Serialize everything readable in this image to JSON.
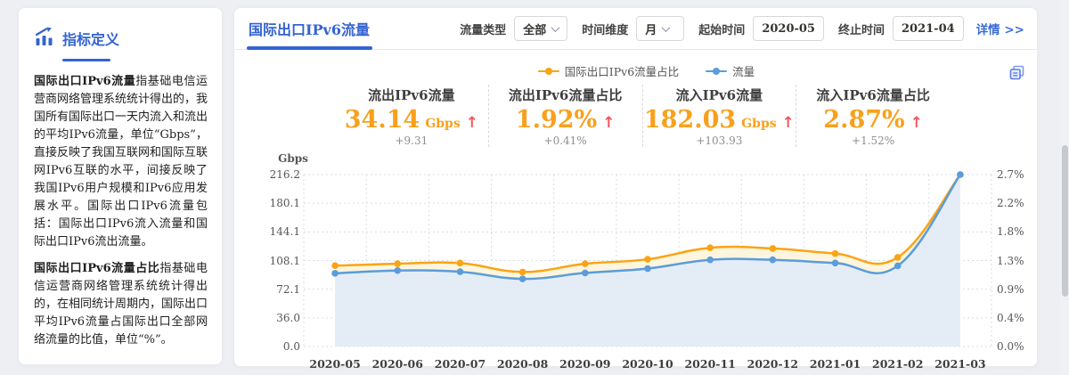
{
  "sidebar": {
    "title": "指标定义",
    "paragraphs": [
      {
        "lead": "国际出口IPv6流量",
        "body": "指基础电信运营商网络管理系统统计得出的，我国所有国际出口一天内流入和流出的平均IPv6流量，单位“Gbps”，直接反映了我国互联网和国际互联网IPv6互联的水平，间接反映了我国IPv6用户规模和IPv6应用发展水平。国际出口IPv6流量包括：国际出口IPv6流入流量和国际出口IPv6流出流量。"
      },
      {
        "lead": "国际出口IPv6流量占比",
        "body": "指基础电信运营商网络管理系统统计得出的，在相同统计周期内，国际出口平均IPv6流量占国际出口全部网络流量的比值，单位“%”。"
      }
    ]
  },
  "panel": {
    "title": "国际出口IPv6流量",
    "filters": {
      "traffic_type_label": "流量类型",
      "traffic_type_value": "全部",
      "time_dim_label": "时间维度",
      "time_dim_value": "月",
      "start_label": "起始时间",
      "start_value": "2020-05",
      "end_label": "终止时间",
      "end_value": "2021-04",
      "details_link": "详情 >>"
    },
    "legend": [
      {
        "label": "国际出口IPv6流量占比",
        "color": "#FAA414"
      },
      {
        "label": "流量",
        "color": "#5B9CDB"
      }
    ],
    "cards": [
      {
        "title": "流出IPv6流量",
        "value": "34.14",
        "unit": "Gbps",
        "arrow": "↑",
        "change": "+9.31"
      },
      {
        "title": "流出IPv6流量占比",
        "value": "1.92%",
        "unit": "",
        "arrow": "↑",
        "change": "+0.41%"
      },
      {
        "title": "流入IPv6流量",
        "value": "182.03",
        "unit": "Gbps",
        "arrow": "↑",
        "change": "+103.93"
      },
      {
        "title": "流入IPv6流量占比",
        "value": "2.87%",
        "unit": "",
        "arrow": "↑",
        "change": "+1.52%"
      }
    ]
  },
  "chart_data": {
    "type": "line",
    "smooth": true,
    "categories": [
      "2020-05",
      "2020-06",
      "2020-07",
      "2020-08",
      "2020-09",
      "2020-10",
      "2020-11",
      "2020-12",
      "2021-01",
      "2021-02",
      "2021-03"
    ],
    "series": [
      {
        "name": "国际出口IPv6流量占比",
        "axis": "right",
        "unit": "%",
        "color": "#FAA414",
        "fill": "#FDF5DE",
        "values": [
          1.27,
          1.3,
          1.31,
          1.17,
          1.3,
          1.37,
          1.55,
          1.54,
          1.46,
          1.4,
          2.7
        ]
      },
      {
        "name": "流量",
        "axis": "left",
        "unit": "Gbps",
        "color": "#5B9CDB",
        "fill": "#E4EDF5",
        "values": [
          92.0,
          95.5,
          94.0,
          85.0,
          92.5,
          98.0,
          109.0,
          109.0,
          105.0,
          101.5,
          216.2
        ]
      }
    ],
    "left_axis": {
      "title": "Gbps",
      "min": 0,
      "max": 216.2,
      "ticks": [
        "0.0",
        "36.0",
        "72.1",
        "108.1",
        "144.1",
        "180.1",
        "216.2"
      ]
    },
    "right_axis": {
      "title": "",
      "min": 0,
      "max": 2.7,
      "ticks": [
        "0.0%",
        "0.4%",
        "0.9%",
        "1.3%",
        "1.8%",
        "2.2%",
        "2.7%"
      ]
    },
    "grid": true,
    "legend_position": "top"
  }
}
